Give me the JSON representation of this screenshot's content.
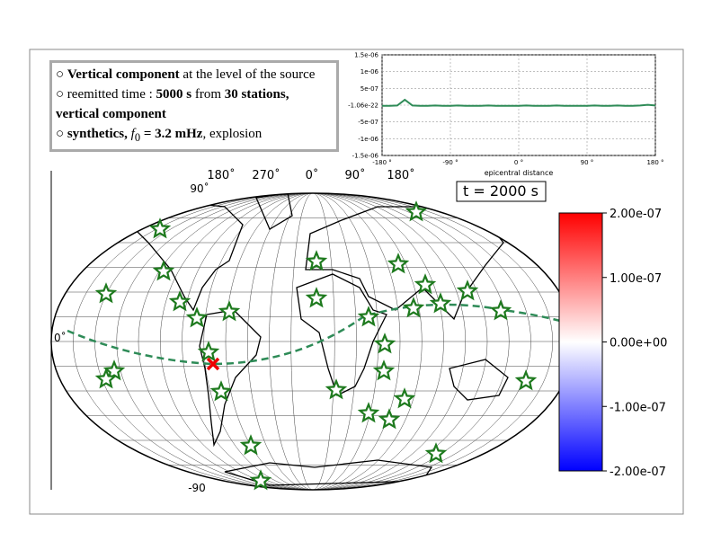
{
  "info_box": {
    "lines": [
      [
        {
          "text": "○ ",
          "style": "normal"
        },
        {
          "text": "Vertical component",
          "style": "bold"
        },
        {
          "text": " at the level of the source",
          "style": "normal"
        }
      ],
      [
        {
          "text": "○ reemitted time : ",
          "style": "normal"
        },
        {
          "text": "5000 s",
          "style": "bold"
        },
        {
          "text": " from ",
          "style": "normal"
        },
        {
          "text": "30 stations, vertical component",
          "style": "bold"
        }
      ],
      [
        {
          "text": "○ ",
          "style": "normal"
        },
        {
          "text": "synthetics, ",
          "style": "bold"
        },
        {
          "text": "f",
          "style": "italic"
        },
        {
          "text": "0",
          "style": "sub"
        },
        {
          "text": " = 3.2 mHz",
          "style": "bold"
        },
        {
          "text": ", explosion",
          "style": "normal"
        }
      ]
    ]
  },
  "chart_data": {
    "type": "line",
    "x_label": "epicentral distance",
    "x": [
      -180,
      -170,
      -160,
      -150,
      -140,
      -130,
      -120,
      -110,
      -100,
      -90,
      -80,
      -70,
      -60,
      -50,
      -40,
      -30,
      -20,
      -10,
      0,
      10,
      20,
      30,
      40,
      50,
      60,
      70,
      80,
      90,
      100,
      110,
      120,
      130,
      140,
      150,
      160,
      170,
      180
    ],
    "series": [
      {
        "color": "#2e8b57",
        "values": [
          -2e-08,
          -2e-08,
          -1e-08,
          1.6e-07,
          -1e-08,
          -2e-08,
          -2e-08,
          -1e-08,
          -2e-08,
          -2e-08,
          -1e-08,
          -2e-08,
          -2e-08,
          -2e-08,
          -1e-08,
          -2e-08,
          -2e-08,
          -2e-08,
          -2e-08,
          -1e-08,
          -2e-08,
          -2e-08,
          -2e-08,
          -1e-08,
          -2e-08,
          -2e-08,
          -2e-08,
          -2e-08,
          -1e-08,
          -2e-08,
          -2e-08,
          -1e-08,
          -2e-08,
          -2e-08,
          -1e-08,
          1e-08,
          -1e-08
        ]
      }
    ],
    "xlim": [
      -180,
      180
    ],
    "xticks": [
      {
        "value": -180,
        "label": "-180 °"
      },
      {
        "value": -90,
        "label": "-90 °"
      },
      {
        "value": 0,
        "label": "0 °"
      },
      {
        "value": 90,
        "label": "90 °"
      },
      {
        "value": 180,
        "label": "180 °"
      }
    ],
    "ylim": [
      -1.5e-06,
      1.5e-06
    ],
    "yticks": [
      {
        "value": 1.5e-06,
        "label": "1.5e-06"
      },
      {
        "value": 1e-06,
        "label": "1e-06"
      },
      {
        "value": 5e-07,
        "label": "5e-07"
      },
      {
        "value": -1.06e-22,
        "label": "-1.06e-22"
      },
      {
        "value": -5e-07,
        "label": "-5e-07"
      },
      {
        "value": -1e-06,
        "label": "-1e-06"
      },
      {
        "value": -1.5e-06,
        "label": "-1.5e-06"
      }
    ],
    "grid": true
  },
  "map": {
    "time_label": "t = 2000 s",
    "longitude_labels": [
      "180˚",
      "270˚",
      "0˚",
      "90˚",
      "180˚"
    ],
    "latitude_labels": {
      "top": "90˚",
      "equator": "0˚",
      "bottom": "-90"
    }
  },
  "colorbar": {
    "lim": [
      -2e-07,
      2e-07
    ],
    "ticks": [
      {
        "value": 2e-07,
        "label": "2.00e-07"
      },
      {
        "value": 1e-07,
        "label": "1.00e-07"
      },
      {
        "value": 0,
        "label": "0.00e+00"
      },
      {
        "value": -1e-07,
        "label": "-1.00e-07"
      },
      {
        "value": -2e-07,
        "label": "-2.00e-07"
      }
    ],
    "colors": [
      "#0000ff",
      "#ffffff",
      "#ff0000"
    ]
  }
}
